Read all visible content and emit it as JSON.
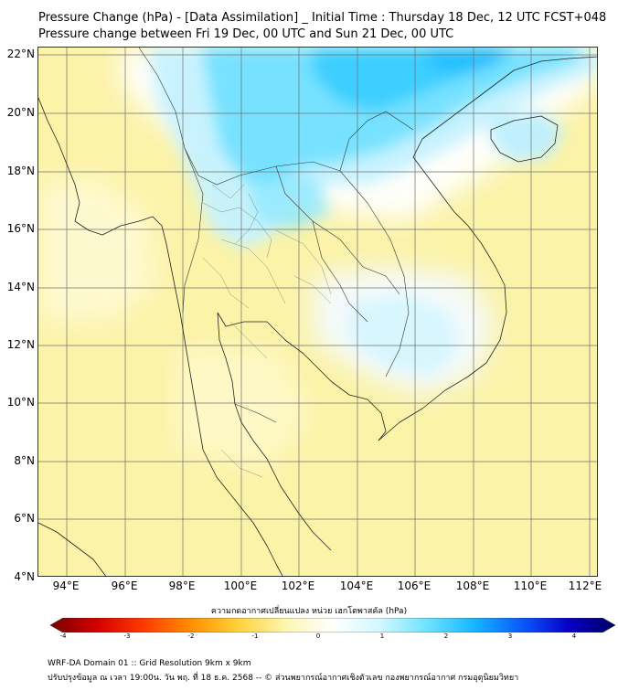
{
  "header": {
    "title_line1": "Pressure Change (hPa) - [Data Assimilation] _ Initial Time : Thursday 18 Dec, 12 UTC FCST+048",
    "title_line2": "Pressure change between Fri 19 Dec, 00 UTC and Sun 21 Dec, 00 UTC"
  },
  "map": {
    "lat_labels": [
      "22°N",
      "20°N",
      "18°N",
      "16°N",
      "14°N",
      "12°N",
      "10°N",
      "8°N",
      "6°N",
      "4°N"
    ],
    "lon_labels": [
      "94°E",
      "96°E",
      "98°E",
      "100°E",
      "102°E",
      "104°E",
      "106°E",
      "108°E",
      "110°E",
      "112°E"
    ],
    "lat_range": [
      4,
      22
    ],
    "lon_range": [
      93,
      112.3
    ],
    "background_color": "#fbf3a8"
  },
  "colorbar": {
    "label": "ความกดอากาศเปลี่ยนแปลง หน่วย เฮกโตพาสคัล (hPa)",
    "range": [
      -4,
      4
    ],
    "ticks": [
      "-4",
      "-3",
      "-2",
      "-1",
      "0",
      "1",
      "2",
      "3",
      "4"
    ],
    "colors": [
      "#7a0000",
      "#d40000",
      "#ff3b00",
      "#ff8f00",
      "#ffd23c",
      "#fdf6b0",
      "#ffffff",
      "#d2f8ff",
      "#6fe3ff",
      "#17b6ff",
      "#0a5aff",
      "#0800c8",
      "#000060"
    ]
  },
  "footer": {
    "line1": "WRF-DA Domain 01 :: Grid Resolution 9km x 9km",
    "line2": "ปรับปรุงข้อมูล ณ เวลา 19:00น. วัน พฤ. ที่ 18 ธ.ค. 2568 -- © ส่วนพยากรณ์อากาศเชิงตัวเลข กองพยากรณ์อากาศ กรมอุตุนิยมวิทยา"
  }
}
